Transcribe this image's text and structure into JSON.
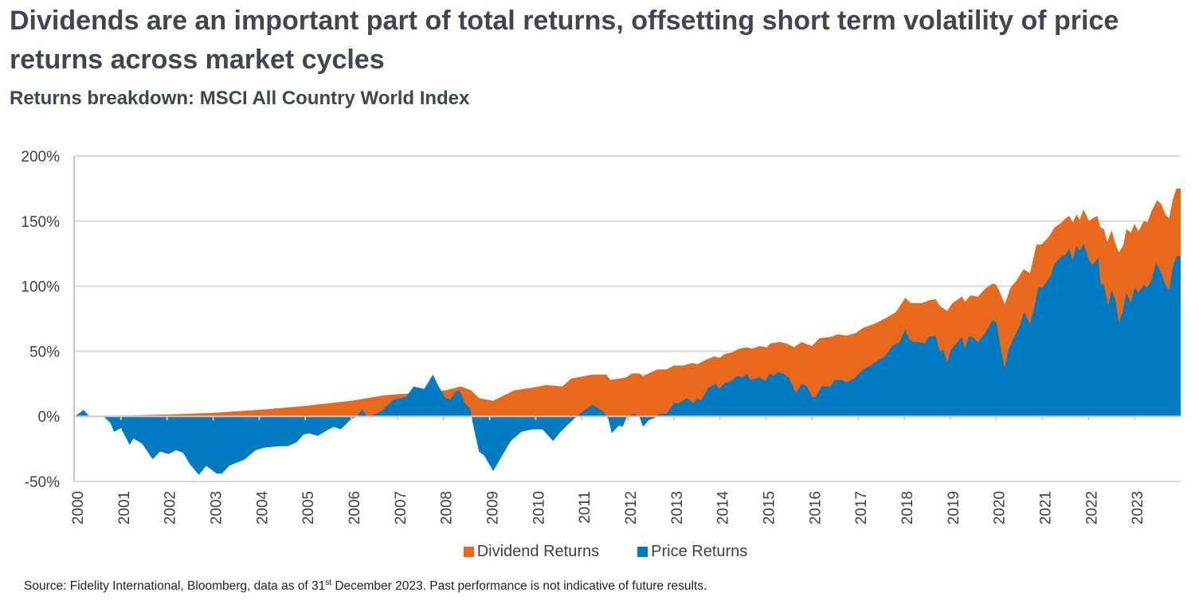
{
  "title": "Dividends are an important part of total returns, offsetting short term volatility of price returns across market cycles",
  "subtitle": "Returns breakdown: MSCI All Country World Index",
  "source": {
    "before": "Source: Fidelity International, Bloomberg, data as of 31",
    "sup": "st",
    "after": " December 2023. Past performance is not indicative of future results."
  },
  "chart_data": {
    "type": "area",
    "title": "",
    "xlabel": "",
    "ylabel": "",
    "xlim": [
      2000,
      2024
    ],
    "ylim": [
      -50,
      200
    ],
    "y_ticks": [
      -50,
      0,
      50,
      100,
      150,
      200
    ],
    "y_tick_labels": [
      "-50%",
      "0%",
      "50%",
      "100%",
      "150%",
      "200%"
    ],
    "x_tick_labels": [
      "2000",
      "2001",
      "2002",
      "2003",
      "2004",
      "2005",
      "2006",
      "2007",
      "2008",
      "2009",
      "2010",
      "2011",
      "2012",
      "2013",
      "2014",
      "2015",
      "2016",
      "2017",
      "2018",
      "2019",
      "2020",
      "2021",
      "2022",
      "2023"
    ],
    "grid": "horizontal",
    "legend_position": "bottom",
    "colors": {
      "dividend": "#E8691B",
      "price": "#007AC0"
    },
    "series": [
      {
        "name": "Dividend Returns",
        "color": "#E8691B",
        "points": [
          [
            2000,
            0
          ],
          [
            2000.9,
            0
          ],
          [
            2001.0,
            0.5
          ],
          [
            2002.0,
            1.4
          ],
          [
            2003.0,
            2.7
          ],
          [
            2004.0,
            5
          ],
          [
            2005.0,
            8
          ],
          [
            2006.0,
            12
          ],
          [
            2006.69,
            16
          ],
          [
            2007.0,
            17
          ],
          [
            2007.5,
            18
          ],
          [
            2008.04,
            20
          ],
          [
            2008.38,
            23
          ],
          [
            2008.6,
            20
          ],
          [
            2008.77,
            14
          ],
          [
            2009.08,
            12
          ],
          [
            2009.31,
            16
          ],
          [
            2009.54,
            20
          ],
          [
            2009.92,
            22
          ],
          [
            2010.23,
            24
          ],
          [
            2010.58,
            23
          ],
          [
            2010.77,
            29
          ],
          [
            2011.23,
            32
          ],
          [
            2011.54,
            32
          ],
          [
            2011.62,
            28
          ],
          [
            2011.81,
            29
          ],
          [
            2011.97,
            30
          ],
          [
            2012.09,
            33
          ],
          [
            2012.25,
            33
          ],
          [
            2012.33,
            31
          ],
          [
            2012.45,
            33
          ],
          [
            2012.64,
            36
          ],
          [
            2012.84,
            36
          ],
          [
            2013.0,
            39
          ],
          [
            2013.2,
            39
          ],
          [
            2013.4,
            41
          ],
          [
            2013.51,
            40
          ],
          [
            2013.67,
            43
          ],
          [
            2013.87,
            46
          ],
          [
            2013.99,
            45
          ],
          [
            2014.11,
            48
          ],
          [
            2014.26,
            49
          ],
          [
            2014.42,
            52
          ],
          [
            2014.58,
            53
          ],
          [
            2014.7,
            52
          ],
          [
            2014.86,
            54
          ],
          [
            2015.02,
            53
          ],
          [
            2015.09,
            56
          ],
          [
            2015.29,
            57
          ],
          [
            2015.45,
            56
          ],
          [
            2015.61,
            53
          ],
          [
            2015.77,
            57
          ],
          [
            2016.0,
            54
          ],
          [
            2016.16,
            60
          ],
          [
            2016.4,
            61
          ],
          [
            2016.56,
            63
          ],
          [
            2016.75,
            62
          ],
          [
            2016.95,
            64
          ],
          [
            2017.11,
            68
          ],
          [
            2017.35,
            71
          ],
          [
            2017.58,
            75
          ],
          [
            2017.82,
            80
          ],
          [
            2018.02,
            91
          ],
          [
            2018.14,
            87
          ],
          [
            2018.38,
            87
          ],
          [
            2018.53,
            89
          ],
          [
            2018.68,
            90
          ],
          [
            2018.77,
            85
          ],
          [
            2018.93,
            81
          ],
          [
            2019.05,
            87
          ],
          [
            2019.25,
            92
          ],
          [
            2019.32,
            88
          ],
          [
            2019.44,
            93
          ],
          [
            2019.6,
            92
          ],
          [
            2019.76,
            98
          ],
          [
            2019.92,
            102
          ],
          [
            2020.0,
            101
          ],
          [
            2020.08,
            95
          ],
          [
            2020.18,
            86
          ],
          [
            2020.31,
            99
          ],
          [
            2020.43,
            104
          ],
          [
            2020.59,
            113
          ],
          [
            2020.73,
            110
          ],
          [
            2020.87,
            132
          ],
          [
            2020.98,
            132
          ],
          [
            2021.14,
            138
          ],
          [
            2021.26,
            145
          ],
          [
            2021.42,
            149
          ],
          [
            2021.5,
            152
          ],
          [
            2021.58,
            154
          ],
          [
            2021.66,
            149
          ],
          [
            2021.74,
            155
          ],
          [
            2021.81,
            151
          ],
          [
            2021.89,
            159
          ],
          [
            2022.01,
            150
          ],
          [
            2022.09,
            152
          ],
          [
            2022.19,
            154
          ],
          [
            2022.26,
            145
          ],
          [
            2022.33,
            144
          ],
          [
            2022.41,
            134
          ],
          [
            2022.5,
            143
          ],
          [
            2022.58,
            133
          ],
          [
            2022.66,
            126
          ],
          [
            2022.76,
            132
          ],
          [
            2022.82,
            144
          ],
          [
            2022.92,
            141
          ],
          [
            2023.0,
            148
          ],
          [
            2023.08,
            142
          ],
          [
            2023.2,
            150
          ],
          [
            2023.28,
            149
          ],
          [
            2023.37,
            158
          ],
          [
            2023.49,
            166
          ],
          [
            2023.58,
            163
          ],
          [
            2023.67,
            155
          ],
          [
            2023.75,
            152
          ],
          [
            2023.83,
            167
          ],
          [
            2023.91,
            175
          ]
        ]
      },
      {
        "name": "Price Returns",
        "color": "#007AC0",
        "points": [
          [
            2000.0,
            0
          ],
          [
            2000.19,
            5
          ],
          [
            2000.31,
            0
          ],
          [
            2000.62,
            0
          ],
          [
            2000.77,
            -5
          ],
          [
            2000.85,
            -12
          ],
          [
            2001.0,
            -9
          ],
          [
            2001.19,
            -22
          ],
          [
            2001.27,
            -17
          ],
          [
            2001.46,
            -21
          ],
          [
            2001.69,
            -33
          ],
          [
            2001.85,
            -27
          ],
          [
            2002.04,
            -29
          ],
          [
            2002.19,
            -26
          ],
          [
            2002.35,
            -28
          ],
          [
            2002.5,
            -37
          ],
          [
            2002.69,
            -45
          ],
          [
            2002.85,
            -38
          ],
          [
            2003.08,
            -44
          ],
          [
            2003.19,
            -44
          ],
          [
            2003.35,
            -38
          ],
          [
            2003.69,
            -33
          ],
          [
            2003.92,
            -26
          ],
          [
            2004.12,
            -24
          ],
          [
            2004.42,
            -23
          ],
          [
            2004.62,
            -23
          ],
          [
            2004.81,
            -20
          ],
          [
            2004.96,
            -14
          ],
          [
            2005.08,
            -13
          ],
          [
            2005.27,
            -15
          ],
          [
            2005.46,
            -11
          ],
          [
            2005.62,
            -8
          ],
          [
            2005.77,
            -10
          ],
          [
            2006.0,
            -2
          ],
          [
            2006.12,
            0
          ],
          [
            2006.23,
            5
          ],
          [
            2006.35,
            0
          ],
          [
            2006.54,
            2
          ],
          [
            2006.69,
            5
          ],
          [
            2006.92,
            13
          ],
          [
            2007.08,
            14
          ],
          [
            2007.19,
            15
          ],
          [
            2007.35,
            23
          ],
          [
            2007.58,
            21
          ],
          [
            2007.77,
            32
          ],
          [
            2007.88,
            24
          ],
          [
            2008.04,
            14
          ],
          [
            2008.15,
            13
          ],
          [
            2008.27,
            19
          ],
          [
            2008.35,
            20
          ],
          [
            2008.46,
            10
          ],
          [
            2008.58,
            6
          ],
          [
            2008.65,
            -8
          ],
          [
            2008.77,
            -27
          ],
          [
            2008.88,
            -30
          ],
          [
            2009.08,
            -42
          ],
          [
            2009.31,
            -28
          ],
          [
            2009.46,
            -19
          ],
          [
            2009.69,
            -12
          ],
          [
            2009.92,
            -10
          ],
          [
            2010.15,
            -10
          ],
          [
            2010.38,
            -19
          ],
          [
            2010.54,
            -12
          ],
          [
            2010.77,
            -4
          ],
          [
            2010.96,
            2
          ],
          [
            2011.23,
            9
          ],
          [
            2011.46,
            4
          ],
          [
            2011.58,
            -2
          ],
          [
            2011.65,
            -13
          ],
          [
            2011.81,
            -7
          ],
          [
            2011.89,
            -8
          ],
          [
            2011.97,
            -1
          ],
          [
            2012.13,
            2
          ],
          [
            2012.25,
            0
          ],
          [
            2012.33,
            -8
          ],
          [
            2012.45,
            -3
          ],
          [
            2012.6,
            -1
          ],
          [
            2012.68,
            2
          ],
          [
            2012.84,
            2
          ],
          [
            2013.0,
            10
          ],
          [
            2013.12,
            10
          ],
          [
            2013.28,
            14
          ],
          [
            2013.43,
            10
          ],
          [
            2013.51,
            14
          ],
          [
            2013.59,
            12
          ],
          [
            2013.75,
            22
          ],
          [
            2013.91,
            25
          ],
          [
            2013.99,
            21
          ],
          [
            2014.11,
            26
          ],
          [
            2014.19,
            26
          ],
          [
            2014.38,
            31
          ],
          [
            2014.5,
            30
          ],
          [
            2014.58,
            33
          ],
          [
            2014.66,
            28
          ],
          [
            2014.86,
            30
          ],
          [
            2014.98,
            27
          ],
          [
            2015.09,
            33
          ],
          [
            2015.17,
            31
          ],
          [
            2015.25,
            34
          ],
          [
            2015.37,
            33
          ],
          [
            2015.49,
            30
          ],
          [
            2015.65,
            18
          ],
          [
            2015.77,
            25
          ],
          [
            2015.89,
            23
          ],
          [
            2016.0,
            15
          ],
          [
            2016.08,
            15
          ],
          [
            2016.2,
            23
          ],
          [
            2016.4,
            23
          ],
          [
            2016.49,
            28
          ],
          [
            2016.64,
            28
          ],
          [
            2016.75,
            26
          ],
          [
            2016.91,
            29
          ],
          [
            2017.11,
            36
          ],
          [
            2017.27,
            39
          ],
          [
            2017.43,
            43
          ],
          [
            2017.58,
            46
          ],
          [
            2017.74,
            54
          ],
          [
            2017.9,
            57
          ],
          [
            2018.02,
            67
          ],
          [
            2018.1,
            60
          ],
          [
            2018.18,
            57
          ],
          [
            2018.34,
            57
          ],
          [
            2018.45,
            56
          ],
          [
            2018.53,
            61
          ],
          [
            2018.68,
            62
          ],
          [
            2018.77,
            50
          ],
          [
            2018.85,
            51
          ],
          [
            2018.93,
            41
          ],
          [
            2019.01,
            51
          ],
          [
            2019.13,
            56
          ],
          [
            2019.25,
            61
          ],
          [
            2019.32,
            52
          ],
          [
            2019.4,
            61
          ],
          [
            2019.48,
            61
          ],
          [
            2019.6,
            57
          ],
          [
            2019.76,
            64
          ],
          [
            2019.92,
            74
          ],
          [
            2020.0,
            72
          ],
          [
            2020.08,
            55
          ],
          [
            2020.18,
            37
          ],
          [
            2020.27,
            52
          ],
          [
            2020.39,
            61
          ],
          [
            2020.51,
            70
          ],
          [
            2020.6,
            80
          ],
          [
            2020.73,
            71
          ],
          [
            2020.83,
            85
          ],
          [
            2020.91,
            99
          ],
          [
            2021.0,
            99
          ],
          [
            2021.18,
            108
          ],
          [
            2021.26,
            117
          ],
          [
            2021.42,
            123
          ],
          [
            2021.5,
            124
          ],
          [
            2021.58,
            129
          ],
          [
            2021.66,
            120
          ],
          [
            2021.74,
            131
          ],
          [
            2021.81,
            127
          ],
          [
            2021.89,
            133
          ],
          [
            2022.01,
            120
          ],
          [
            2022.09,
            116
          ],
          [
            2022.21,
            122
          ],
          [
            2022.26,
            102
          ],
          [
            2022.33,
            101
          ],
          [
            2022.43,
            85
          ],
          [
            2022.5,
            97
          ],
          [
            2022.58,
            90
          ],
          [
            2022.66,
            72
          ],
          [
            2022.74,
            80
          ],
          [
            2022.82,
            95
          ],
          [
            2022.92,
            87
          ],
          [
            2023.0,
            99
          ],
          [
            2023.08,
            95
          ],
          [
            2023.2,
            101
          ],
          [
            2023.28,
            99
          ],
          [
            2023.37,
            105
          ],
          [
            2023.47,
            118
          ],
          [
            2023.58,
            110
          ],
          [
            2023.67,
            101
          ],
          [
            2023.75,
            97
          ],
          [
            2023.83,
            115
          ],
          [
            2023.91,
            123
          ]
        ]
      }
    ]
  }
}
